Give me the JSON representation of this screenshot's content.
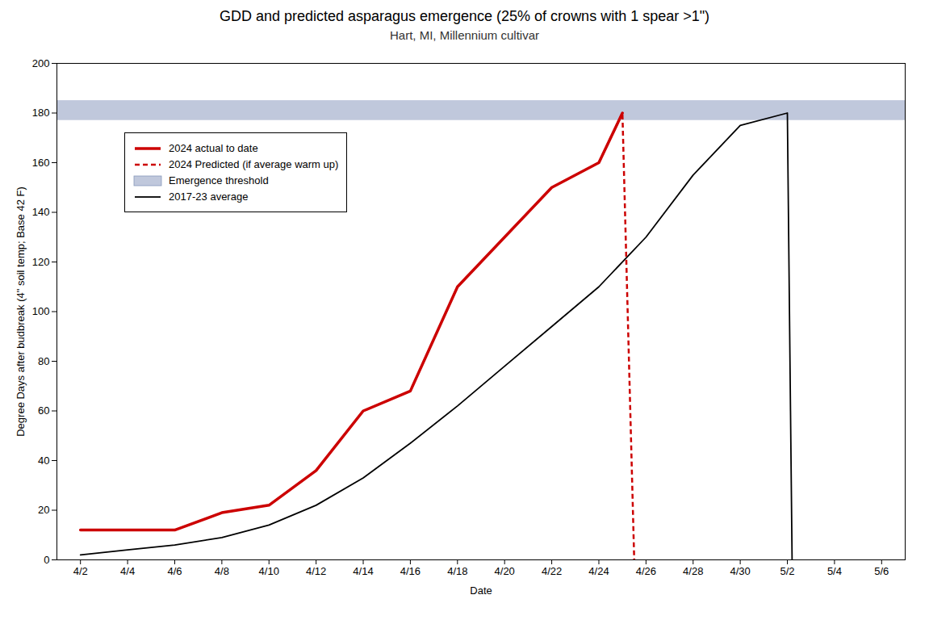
{
  "chart_data": {
    "type": "line",
    "title": "GDD and predicted asparagus emergence (25% of crowns with 1 spear >1\")",
    "subtitle": "Hart, MI, Millennium cultivar",
    "xlabel": "Date",
    "ylabel": "Degree Days after budbreak (4\" soil temp; Base 42 F)",
    "xlim": [
      -0.5,
      17.5
    ],
    "xticks": [
      {
        "value": 0,
        "label": "4/2"
      },
      {
        "value": 1,
        "label": "4/4"
      },
      {
        "value": 2,
        "label": "4/6"
      },
      {
        "value": 3,
        "label": "4/8"
      },
      {
        "value": 4,
        "label": "4/10"
      },
      {
        "value": 5,
        "label": "4/12"
      },
      {
        "value": 6,
        "label": "4/14"
      },
      {
        "value": 7,
        "label": "4/16"
      },
      {
        "value": 8,
        "label": "4/18"
      },
      {
        "value": 9,
        "label": "4/20"
      },
      {
        "value": 10,
        "label": "4/22"
      },
      {
        "value": 11,
        "label": "4/24"
      },
      {
        "value": 12,
        "label": "4/26"
      },
      {
        "value": 13,
        "label": "4/28"
      },
      {
        "value": 14,
        "label": "4/30"
      },
      {
        "value": 15,
        "label": "5/2"
      },
      {
        "value": 16,
        "label": "5/4"
      },
      {
        "value": 17,
        "label": "5/6"
      }
    ],
    "ylim": [
      0,
      200
    ],
    "yticks": [
      0,
      20,
      40,
      60,
      80,
      100,
      120,
      140,
      160,
      180,
      200
    ],
    "grid": false,
    "legend": "upper left",
    "series": [
      {
        "name": "2024 actual to date",
        "type": "line",
        "color": "#cc0000",
        "line_style": "solid",
        "x": [
          0,
          1,
          2,
          3,
          4,
          5,
          6,
          7,
          8,
          9,
          10,
          11,
          11.5
        ],
        "values": [
          12,
          12,
          12,
          19,
          22,
          36,
          60,
          68,
          110,
          130,
          150,
          160,
          180
        ]
      },
      {
        "name": "2024 Predicted (if average warm up)",
        "type": "line",
        "color": "#cc0000",
        "line_style": "dashed",
        "x": [
          11.0,
          11.5,
          11.75
        ],
        "values": [
          160,
          180,
          0
        ]
      },
      {
        "name": "Emergence threshold",
        "type": "band",
        "color": "#c0c8dc",
        "lower": 177,
        "upper": 185
      },
      {
        "name": "2017-23 average",
        "type": "line",
        "color": "#000000",
        "line_style": "solid",
        "x": [
          0,
          1,
          2,
          3,
          4,
          5,
          6,
          7,
          8,
          9,
          10,
          11,
          12,
          13,
          14,
          15,
          15.1
        ],
        "values": [
          2,
          4,
          6,
          9,
          14,
          22,
          33,
          47,
          62,
          78,
          94,
          110,
          130,
          155,
          175,
          180,
          0
        ]
      }
    ]
  }
}
